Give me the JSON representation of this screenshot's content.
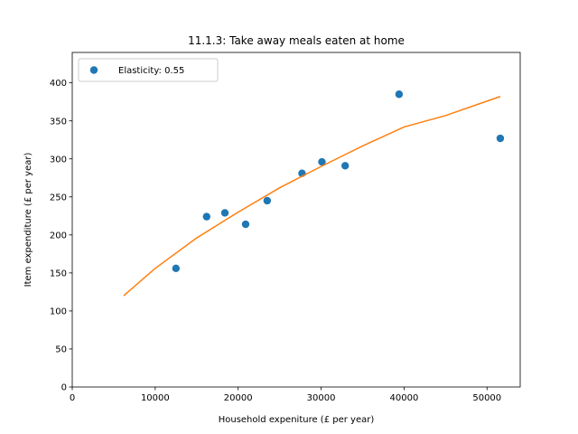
{
  "chart_data": {
    "type": "scatter",
    "title": "11.1.3: Take away meals eaten at home",
    "xlabel": "Household expeniture (£ per year)",
    "ylabel": "Item expenditure (£ per year)",
    "xlim": [
      0,
      54000
    ],
    "ylim": [
      0,
      440
    ],
    "xticks": [
      0,
      10000,
      20000,
      30000,
      40000,
      50000
    ],
    "yticks": [
      0,
      50,
      100,
      150,
      200,
      250,
      300,
      350,
      400
    ],
    "grid": false,
    "legend_position": "top-left",
    "series": [
      {
        "name": "Elasticity: 0.55",
        "kind": "points",
        "color": "#1f77b4",
        "points": [
          {
            "x": 12500,
            "y": 156
          },
          {
            "x": 16200,
            "y": 224
          },
          {
            "x": 18400,
            "y": 229
          },
          {
            "x": 20900,
            "y": 214
          },
          {
            "x": 23500,
            "y": 245
          },
          {
            "x": 27700,
            "y": 281
          },
          {
            "x": 30100,
            "y": 296
          },
          {
            "x": 32900,
            "y": 291
          },
          {
            "x": 39400,
            "y": 385
          },
          {
            "x": 51600,
            "y": 327
          }
        ]
      },
      {
        "kind": "fit-line",
        "color": "#ff7f0e",
        "points": [
          {
            "x": 6200,
            "y": 120
          },
          {
            "x": 10000,
            "y": 156
          },
          {
            "x": 15000,
            "y": 196
          },
          {
            "x": 20000,
            "y": 230
          },
          {
            "x": 25000,
            "y": 262
          },
          {
            "x": 30000,
            "y": 290
          },
          {
            "x": 35000,
            "y": 317
          },
          {
            "x": 40000,
            "y": 342
          },
          {
            "x": 45000,
            "y": 357
          },
          {
            "x": 51600,
            "y": 382
          }
        ]
      }
    ]
  }
}
